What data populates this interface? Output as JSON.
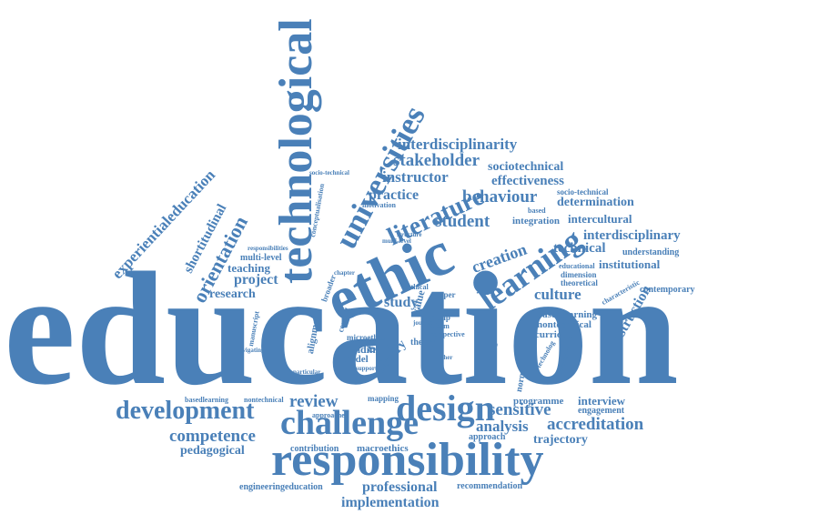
{
  "color": "#4a80b8",
  "words": [
    "education",
    "technological",
    "universities",
    "ethic",
    "learning",
    "responsibility",
    "challenge",
    "design",
    "development",
    "literature",
    "student",
    "behaviour",
    "practice",
    "instructor",
    "effectiveness",
    "stakeholder",
    "interdisciplinarity",
    "sociotechnical",
    "determination",
    "interdisciplinary",
    "intercultural",
    "technical",
    "institutional",
    "understanding",
    "culture",
    "instruction",
    "contemporary",
    "orientation",
    "shortitudinal",
    "experientialeducation",
    "teaching",
    "project",
    "research",
    "review",
    "competence",
    "pedagogical",
    "sensitive",
    "analysis",
    "accreditation",
    "trajectory",
    "interview",
    "engagement",
    "professional",
    "implementation",
    "recommendation",
    "engineeringeducation",
    "macroethics",
    "contribution",
    "studies",
    "case",
    "goal",
    "study",
    "value",
    "history",
    "finding",
    "model",
    "microethics",
    "alignment",
    "integration",
    "based",
    "creation",
    "societal",
    "collective",
    "approach",
    "basedlearning",
    "nontechnical",
    "curricular",
    "programme",
    "norm",
    "group",
    "reform",
    "ethical",
    "paper",
    "theory",
    "perspective",
    "method",
    "motivation",
    "multi-level",
    "responsibilities",
    "conceptualisation",
    "socio-technical",
    "educational",
    "dimension",
    "theoretical",
    "characteristic",
    "chapter",
    "structure",
    "broader",
    "context",
    "higher",
    "navigating",
    "mapping",
    "approaches",
    "particular",
    "support",
    "need",
    "journal",
    "immersive",
    "technolog",
    "manuscript"
  ]
}
